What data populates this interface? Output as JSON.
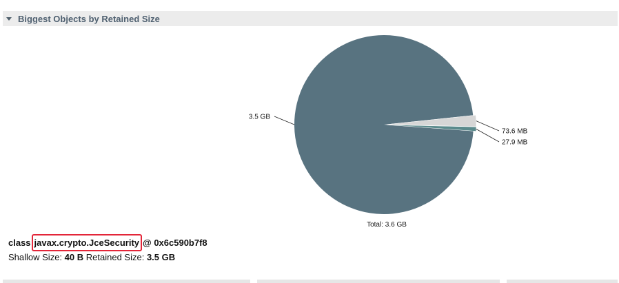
{
  "section": {
    "title": "Biggest Objects by Retained Size",
    "collapse_icon": "triangle-down-icon"
  },
  "chart_data": {
    "type": "pie",
    "title": "",
    "unit": "MB",
    "slices": [
      {
        "label": "3.5 GB",
        "value": 3500,
        "color": "#587380"
      },
      {
        "label": "73.6 MB",
        "value": 73.6,
        "color": "#d6d6d6"
      },
      {
        "label": "27.9 MB",
        "value": 27.9,
        "color": "#5a8a8c"
      }
    ],
    "total_label": "Total: 3.6 GB"
  },
  "detail": {
    "prefix": "class",
    "class_name": "javax.crypto.JceSecurity",
    "address": "@ 0x6c590b7f8",
    "shallow_label": "Shallow Size:",
    "shallow_value": "40 B",
    "retained_label": "Retained Size:",
    "retained_value": "3.5 GB"
  }
}
